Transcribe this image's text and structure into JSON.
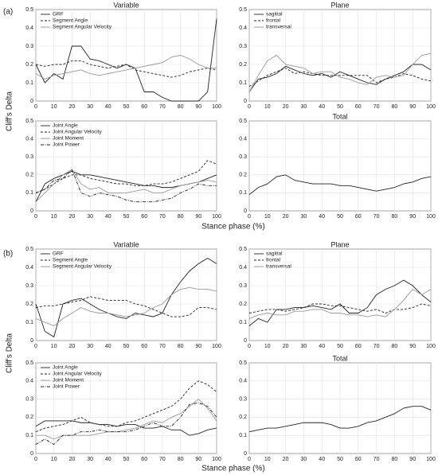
{
  "panels": [
    {
      "label": "(a)",
      "ylabel": "Cliff's Delta",
      "xlabel": "Stance phase (%)"
    },
    {
      "label": "(b)",
      "ylabel": "Cliff's Delta",
      "xlabel": "Stance phase (%)"
    }
  ],
  "chart_data": [
    {
      "type": "line",
      "title": "Variable",
      "grid": true,
      "legend": "upper left",
      "x": [
        0,
        5,
        10,
        15,
        20,
        25,
        30,
        35,
        40,
        45,
        50,
        55,
        60,
        65,
        70,
        75,
        80,
        85,
        90,
        95,
        100
      ],
      "xlim": [
        0,
        100
      ],
      "xticks": [
        0,
        10,
        20,
        30,
        40,
        50,
        60,
        70,
        80,
        90,
        100
      ],
      "ylim": [
        0,
        0.5
      ],
      "yticks": [
        0,
        0.1,
        0.2,
        0.3,
        0.4,
        0.5
      ],
      "series": [
        {
          "name": "GRF",
          "color": "#222222",
          "style": "solid",
          "values": [
            0.2,
            0.1,
            0.15,
            0.12,
            0.3,
            0.3,
            0.23,
            0.22,
            0.2,
            0.18,
            0.2,
            0.18,
            0.05,
            0.05,
            0.02,
            0.0,
            0.0,
            0.0,
            0.0,
            0.05,
            0.45
          ]
        },
        {
          "name": "Segment Angle",
          "color": "#222222",
          "style": "dashed",
          "values": [
            0.2,
            0.19,
            0.2,
            0.2,
            0.22,
            0.22,
            0.2,
            0.19,
            0.18,
            0.19,
            0.2,
            0.17,
            0.16,
            0.15,
            0.14,
            0.13,
            0.14,
            0.16,
            0.17,
            0.18,
            0.17
          ]
        },
        {
          "name": "Segment Angular Velocity",
          "color": "#999999",
          "style": "solid",
          "values": [
            0.15,
            0.12,
            0.14,
            0.15,
            0.16,
            0.17,
            0.15,
            0.14,
            0.15,
            0.16,
            0.17,
            0.18,
            0.19,
            0.2,
            0.21,
            0.24,
            0.25,
            0.23,
            0.2,
            0.18,
            0.18
          ]
        }
      ]
    },
    {
      "type": "line",
      "title": "Plane",
      "grid": true,
      "legend": "upper left",
      "x": [
        0,
        5,
        10,
        15,
        20,
        25,
        30,
        35,
        40,
        45,
        50,
        55,
        60,
        65,
        70,
        75,
        80,
        85,
        90,
        95,
        100
      ],
      "xlim": [
        0,
        100
      ],
      "xticks": [
        0,
        10,
        20,
        30,
        40,
        50,
        60,
        70,
        80,
        90,
        100
      ],
      "ylim": [
        0,
        0.5
      ],
      "yticks": [
        0,
        0.1,
        0.2,
        0.3,
        0.4,
        0.5
      ],
      "series": [
        {
          "name": "sagittal",
          "color": "#222222",
          "style": "solid",
          "values": [
            0.05,
            0.12,
            0.13,
            0.15,
            0.19,
            0.17,
            0.15,
            0.14,
            0.15,
            0.13,
            0.16,
            0.14,
            0.12,
            0.1,
            0.09,
            0.12,
            0.14,
            0.16,
            0.2,
            0.2,
            0.17
          ]
        },
        {
          "name": "frontal",
          "color": "#222222",
          "style": "dashed",
          "values": [
            0.08,
            0.11,
            0.14,
            0.16,
            0.18,
            0.15,
            0.16,
            0.15,
            0.14,
            0.14,
            0.14,
            0.14,
            0.14,
            0.14,
            0.1,
            0.12,
            0.13,
            0.15,
            0.14,
            0.12,
            0.11
          ]
        },
        {
          "name": "transversal",
          "color": "#999999",
          "style": "solid",
          "values": [
            0.05,
            0.14,
            0.22,
            0.25,
            0.2,
            0.19,
            0.18,
            0.15,
            0.16,
            0.16,
            0.13,
            0.12,
            0.1,
            0.09,
            0.13,
            0.14,
            0.13,
            0.14,
            0.2,
            0.25,
            0.26
          ]
        }
      ]
    },
    {
      "type": "line",
      "grid": true,
      "legend": "upper left",
      "x": [
        0,
        5,
        10,
        15,
        20,
        25,
        30,
        35,
        40,
        45,
        50,
        55,
        60,
        65,
        70,
        75,
        80,
        85,
        90,
        95,
        100
      ],
      "xlim": [
        0,
        100
      ],
      "xticks": [
        0,
        10,
        20,
        30,
        40,
        50,
        60,
        70,
        80,
        90,
        100
      ],
      "ylim": [
        0,
        0.5
      ],
      "yticks": [
        0,
        0.1,
        0.2,
        0.3,
        0.4,
        0.5
      ],
      "series": [
        {
          "name": "Joint Angle",
          "color": "#222222",
          "style": "solid",
          "values": [
            0.05,
            0.15,
            0.18,
            0.2,
            0.22,
            0.2,
            0.2,
            0.19,
            0.18,
            0.17,
            0.16,
            0.15,
            0.14,
            0.14,
            0.13,
            0.13,
            0.14,
            0.15,
            0.16,
            0.18,
            0.2
          ]
        },
        {
          "name": "Joint Angular Velocity",
          "color": "#222222",
          "style": "dashed",
          "values": [
            0.1,
            0.12,
            0.15,
            0.18,
            0.2,
            0.2,
            0.18,
            0.17,
            0.16,
            0.15,
            0.15,
            0.14,
            0.14,
            0.15,
            0.15,
            0.16,
            0.18,
            0.2,
            0.22,
            0.28,
            0.26
          ]
        },
        {
          "name": "Joint Moment",
          "color": "#999999",
          "style": "solid",
          "values": [
            0.05,
            0.1,
            0.15,
            0.2,
            0.23,
            0.15,
            0.12,
            0.13,
            0.1,
            0.1,
            0.1,
            0.11,
            0.12,
            0.1,
            0.1,
            0.12,
            0.14,
            0.15,
            0.16,
            0.17,
            0.16
          ]
        },
        {
          "name": "Joint Power",
          "color": "#222222",
          "style": "dashdot",
          "values": [
            0.1,
            0.12,
            0.17,
            0.18,
            0.23,
            0.1,
            0.08,
            0.1,
            0.09,
            0.08,
            0.06,
            0.05,
            0.05,
            0.05,
            0.06,
            0.07,
            0.1,
            0.12,
            0.15,
            0.14,
            0.14
          ]
        }
      ]
    },
    {
      "type": "line",
      "title": "Total",
      "grid": true,
      "x": [
        0,
        5,
        10,
        15,
        20,
        25,
        30,
        35,
        40,
        45,
        50,
        55,
        60,
        65,
        70,
        75,
        80,
        85,
        90,
        95,
        100
      ],
      "xlim": [
        0,
        100
      ],
      "xticks": [
        0,
        10,
        20,
        30,
        40,
        50,
        60,
        70,
        80,
        90,
        100
      ],
      "ylim": [
        0,
        0.5
      ],
      "yticks": [
        0,
        0.1,
        0.2,
        0.3,
        0.4,
        0.5
      ],
      "series": [
        {
          "color": "#222222",
          "style": "solid",
          "values": [
            0.09,
            0.13,
            0.15,
            0.19,
            0.2,
            0.17,
            0.16,
            0.15,
            0.15,
            0.15,
            0.14,
            0.14,
            0.13,
            0.12,
            0.11,
            0.12,
            0.13,
            0.15,
            0.16,
            0.18,
            0.19
          ]
        }
      ]
    },
    {
      "type": "line",
      "title": "Variable",
      "grid": true,
      "legend": "upper left",
      "x": [
        0,
        5,
        10,
        15,
        20,
        25,
        30,
        35,
        40,
        45,
        50,
        55,
        60,
        65,
        70,
        75,
        80,
        85,
        90,
        95,
        100
      ],
      "xlim": [
        0,
        100
      ],
      "xticks": [
        0,
        10,
        20,
        30,
        40,
        50,
        60,
        70,
        80,
        90,
        100
      ],
      "ylim": [
        0,
        0.5
      ],
      "yticks": [
        0,
        0.1,
        0.2,
        0.3,
        0.4,
        0.5
      ],
      "series": [
        {
          "name": "GRF",
          "color": "#222222",
          "style": "solid",
          "values": [
            0.2,
            0.05,
            0.02,
            0.2,
            0.22,
            0.23,
            0.2,
            0.17,
            0.15,
            0.13,
            0.12,
            0.15,
            0.14,
            0.13,
            0.15,
            0.25,
            0.32,
            0.38,
            0.42,
            0.45,
            0.42
          ]
        },
        {
          "name": "Segment Angle",
          "color": "#222222",
          "style": "dashed",
          "values": [
            0.18,
            0.19,
            0.19,
            0.2,
            0.21,
            0.22,
            0.24,
            0.23,
            0.22,
            0.22,
            0.22,
            0.2,
            0.19,
            0.17,
            0.15,
            0.13,
            0.13,
            0.14,
            0.18,
            0.18,
            0.17
          ]
        },
        {
          "name": "Segment Angular Velocity",
          "color": "#999999",
          "style": "solid",
          "values": [
            0.12,
            0.1,
            0.08,
            0.12,
            0.15,
            0.18,
            0.16,
            0.15,
            0.15,
            0.14,
            0.13,
            0.14,
            0.15,
            0.18,
            0.2,
            0.25,
            0.28,
            0.29,
            0.28,
            0.28,
            0.27
          ]
        }
      ]
    },
    {
      "type": "line",
      "title": "Plane",
      "grid": true,
      "legend": "upper left",
      "x": [
        0,
        5,
        10,
        15,
        20,
        25,
        30,
        35,
        40,
        45,
        50,
        55,
        60,
        65,
        70,
        75,
        80,
        85,
        90,
        95,
        100
      ],
      "xlim": [
        0,
        100
      ],
      "xticks": [
        0,
        10,
        20,
        30,
        40,
        50,
        60,
        70,
        80,
        90,
        100
      ],
      "ylim": [
        0,
        0.5
      ],
      "yticks": [
        0,
        0.1,
        0.2,
        0.3,
        0.4,
        0.5
      ],
      "series": [
        {
          "name": "sagittal",
          "color": "#222222",
          "style": "solid",
          "values": [
            0.08,
            0.12,
            0.1,
            0.17,
            0.17,
            0.18,
            0.18,
            0.19,
            0.18,
            0.17,
            0.2,
            0.15,
            0.15,
            0.18,
            0.25,
            0.28,
            0.3,
            0.33,
            0.3,
            0.25,
            0.21
          ]
        },
        {
          "name": "frontal",
          "color": "#222222",
          "style": "dashed",
          "values": [
            0.15,
            0.16,
            0.17,
            0.17,
            0.16,
            0.17,
            0.18,
            0.2,
            0.2,
            0.19,
            0.19,
            0.18,
            0.17,
            0.16,
            0.17,
            0.15,
            0.17,
            0.17,
            0.18,
            0.2,
            0.19
          ]
        },
        {
          "name": "transversal",
          "color": "#999999",
          "style": "solid",
          "values": [
            0.12,
            0.14,
            0.15,
            0.14,
            0.14,
            0.16,
            0.16,
            0.17,
            0.17,
            0.15,
            0.15,
            0.14,
            0.14,
            0.13,
            0.14,
            0.13,
            0.17,
            0.22,
            0.28,
            0.25,
            0.28
          ]
        }
      ]
    },
    {
      "type": "line",
      "grid": true,
      "legend": "upper left",
      "x": [
        0,
        5,
        10,
        15,
        20,
        25,
        30,
        35,
        40,
        45,
        50,
        55,
        60,
        65,
        70,
        75,
        80,
        85,
        90,
        95,
        100
      ],
      "xlim": [
        0,
        100
      ],
      "xticks": [
        0,
        10,
        20,
        30,
        40,
        50,
        60,
        70,
        80,
        90,
        100
      ],
      "ylim": [
        0,
        0.5
      ],
      "yticks": [
        0,
        0.1,
        0.2,
        0.3,
        0.4,
        0.5
      ],
      "series": [
        {
          "name": "Joint Angle",
          "color": "#222222",
          "style": "solid",
          "values": [
            0.15,
            0.18,
            0.18,
            0.18,
            0.18,
            0.17,
            0.17,
            0.16,
            0.16,
            0.15,
            0.16,
            0.16,
            0.14,
            0.14,
            0.15,
            0.13,
            0.13,
            0.1,
            0.11,
            0.13,
            0.14
          ]
        },
        {
          "name": "Joint Angular Velocity",
          "color": "#222222",
          "style": "dashed",
          "values": [
            0.12,
            0.14,
            0.15,
            0.16,
            0.18,
            0.2,
            0.17,
            0.16,
            0.15,
            0.15,
            0.17,
            0.18,
            0.2,
            0.22,
            0.24,
            0.26,
            0.3,
            0.36,
            0.4,
            0.38,
            0.34
          ]
        },
        {
          "name": "Joint Moment",
          "color": "#999999",
          "style": "solid",
          "values": [
            0.1,
            0.1,
            0.08,
            0.1,
            0.1,
            0.1,
            0.1,
            0.11,
            0.12,
            0.12,
            0.13,
            0.14,
            0.16,
            0.18,
            0.17,
            0.2,
            0.22,
            0.26,
            0.3,
            0.25,
            0.18
          ]
        },
        {
          "name": "Joint Power",
          "color": "#222222",
          "style": "dashdot",
          "values": [
            0.05,
            0.08,
            0.05,
            0.1,
            0.1,
            0.12,
            0.12,
            0.13,
            0.12,
            0.12,
            0.12,
            0.13,
            0.15,
            0.17,
            0.15,
            0.15,
            0.2,
            0.27,
            0.28,
            0.26,
            0.2
          ]
        }
      ]
    },
    {
      "type": "line",
      "title": "Total",
      "grid": true,
      "x": [
        0,
        5,
        10,
        15,
        20,
        25,
        30,
        35,
        40,
        45,
        50,
        55,
        60,
        65,
        70,
        75,
        80,
        85,
        90,
        95,
        100
      ],
      "xlim": [
        0,
        100
      ],
      "xticks": [
        0,
        10,
        20,
        30,
        40,
        50,
        60,
        70,
        80,
        90,
        100
      ],
      "ylim": [
        0,
        0.5
      ],
      "yticks": [
        0,
        0.1,
        0.2,
        0.3,
        0.4,
        0.5
      ],
      "series": [
        {
          "color": "#222222",
          "style": "solid",
          "values": [
            0.12,
            0.13,
            0.14,
            0.14,
            0.15,
            0.16,
            0.17,
            0.17,
            0.17,
            0.16,
            0.14,
            0.14,
            0.15,
            0.17,
            0.18,
            0.2,
            0.22,
            0.25,
            0.26,
            0.26,
            0.24
          ]
        }
      ]
    }
  ]
}
